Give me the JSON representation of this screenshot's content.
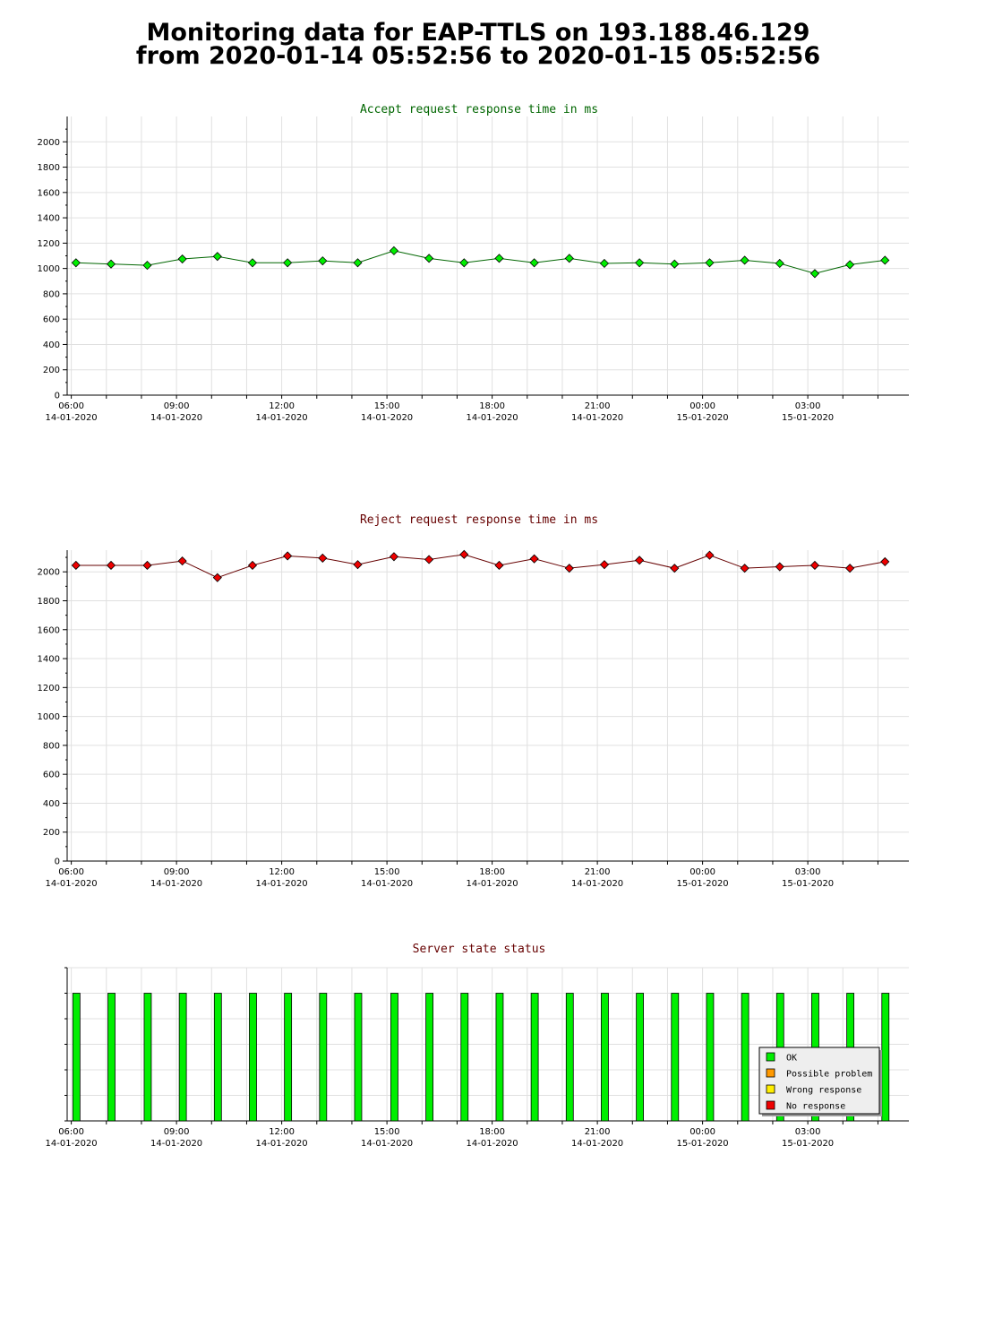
{
  "page": {
    "title_line1": "Monitoring data for EAP-TTLS on 193.188.46.129",
    "title_line2": "from 2020-01-14 05:52:56 to 2020-01-15 05:52:56"
  },
  "chart_data": [
    {
      "type": "line",
      "title": "Accept request response time in ms",
      "title_color": "#006600",
      "marker_color": "#00ee00",
      "line_color": "#006600",
      "xlabel": "",
      "ylabel": "",
      "x_ticks": [
        [
          "06:00",
          "14-01-2020"
        ],
        [
          "09:00",
          "14-01-2020"
        ],
        [
          "12:00",
          "14-01-2020"
        ],
        [
          "15:00",
          "14-01-2020"
        ],
        [
          "18:00",
          "14-01-2020"
        ],
        [
          "21:00",
          "14-01-2020"
        ],
        [
          "00:00",
          "15-01-2020"
        ],
        [
          "03:00",
          "15-01-2020"
        ]
      ],
      "xlim": [
        "2020-01-14 05:52:56",
        "2020-01-15 05:52:56"
      ],
      "ylim": [
        0,
        2200
      ],
      "y_ticks": [
        0,
        200,
        400,
        600,
        800,
        1000,
        1200,
        1400,
        1600,
        1800,
        2000
      ],
      "grid": true,
      "x": [
        "2020-01-14 06:08",
        "2020-01-14 07:08",
        "2020-01-14 08:10",
        "2020-01-14 09:10",
        "2020-01-14 10:10",
        "2020-01-14 11:10",
        "2020-01-14 12:10",
        "2020-01-14 13:10",
        "2020-01-14 14:10",
        "2020-01-14 15:12",
        "2020-01-14 16:12",
        "2020-01-14 17:12",
        "2020-01-14 18:12",
        "2020-01-14 19:12",
        "2020-01-14 20:12",
        "2020-01-14 21:12",
        "2020-01-14 22:12",
        "2020-01-14 23:12",
        "2020-01-15 00:12",
        "2020-01-15 01:12",
        "2020-01-15 02:12",
        "2020-01-15 03:12",
        "2020-01-15 04:12",
        "2020-01-15 05:12"
      ],
      "values": [
        1045,
        1035,
        1025,
        1075,
        1095,
        1045,
        1045,
        1060,
        1045,
        1140,
        1080,
        1045,
        1080,
        1045,
        1080,
        1040,
        1045,
        1035,
        1045,
        1065,
        1040,
        960,
        1030,
        1065
      ]
    },
    {
      "type": "line",
      "title": "Reject request response time in ms",
      "title_color": "#660000",
      "marker_color": "#ee0000",
      "line_color": "#660000",
      "xlabel": "",
      "ylabel": "",
      "x_ticks": [
        [
          "06:00",
          "14-01-2020"
        ],
        [
          "09:00",
          "14-01-2020"
        ],
        [
          "12:00",
          "14-01-2020"
        ],
        [
          "15:00",
          "14-01-2020"
        ],
        [
          "18:00",
          "14-01-2020"
        ],
        [
          "21:00",
          "14-01-2020"
        ],
        [
          "00:00",
          "15-01-2020"
        ],
        [
          "03:00",
          "15-01-2020"
        ]
      ],
      "xlim": [
        "2020-01-14 05:52:56",
        "2020-01-15 05:52:56"
      ],
      "ylim": [
        0,
        2150
      ],
      "y_ticks": [
        0,
        200,
        400,
        600,
        800,
        1000,
        1200,
        1400,
        1600,
        1800,
        2000
      ],
      "grid": true,
      "x": [
        "2020-01-14 06:08",
        "2020-01-14 07:08",
        "2020-01-14 08:10",
        "2020-01-14 09:10",
        "2020-01-14 10:10",
        "2020-01-14 11:10",
        "2020-01-14 12:10",
        "2020-01-14 13:10",
        "2020-01-14 14:10",
        "2020-01-14 15:12",
        "2020-01-14 16:12",
        "2020-01-14 17:12",
        "2020-01-14 18:12",
        "2020-01-14 19:12",
        "2020-01-14 20:12",
        "2020-01-14 21:12",
        "2020-01-14 22:12",
        "2020-01-14 23:12",
        "2020-01-15 00:12",
        "2020-01-15 01:12",
        "2020-01-15 02:12",
        "2020-01-15 03:12",
        "2020-01-15 04:12",
        "2020-01-15 05:12"
      ],
      "values": [
        2045,
        2045,
        2045,
        2075,
        1960,
        2045,
        2110,
        2095,
        2050,
        2105,
        2085,
        2120,
        2045,
        2090,
        2025,
        2050,
        2080,
        2025,
        2115,
        2025,
        2035,
        2045,
        2025,
        2070
      ]
    },
    {
      "type": "bar",
      "title": "Server state status",
      "title_color": "#660000",
      "xlabel": "",
      "ylabel": "",
      "x_ticks": [
        [
          "06:00",
          "14-01-2020"
        ],
        [
          "09:00",
          "14-01-2020"
        ],
        [
          "12:00",
          "14-01-2020"
        ],
        [
          "15:00",
          "14-01-2020"
        ],
        [
          "18:00",
          "14-01-2020"
        ],
        [
          "21:00",
          "14-01-2020"
        ],
        [
          "00:00",
          "15-01-2020"
        ],
        [
          "03:00",
          "15-01-2020"
        ]
      ],
      "xlim": [
        "2020-01-14 05:52:56",
        "2020-01-15 05:52:56"
      ],
      "ylim": [
        0,
        6
      ],
      "grid": true,
      "legend_placement": "bottom-right",
      "legend": [
        {
          "label": "OK",
          "color": "#00ee00"
        },
        {
          "label": "Possible problem",
          "color": "#ff9900"
        },
        {
          "label": "Wrong response",
          "color": "#ffee00"
        },
        {
          "label": "No response",
          "color": "#ee0000"
        }
      ],
      "x": [
        "2020-01-14 06:08",
        "2020-01-14 07:08",
        "2020-01-14 08:10",
        "2020-01-14 09:10",
        "2020-01-14 10:10",
        "2020-01-14 11:10",
        "2020-01-14 12:10",
        "2020-01-14 13:10",
        "2020-01-14 14:10",
        "2020-01-14 15:12",
        "2020-01-14 16:12",
        "2020-01-14 17:12",
        "2020-01-14 18:12",
        "2020-01-14 19:12",
        "2020-01-14 20:12",
        "2020-01-14 21:12",
        "2020-01-14 22:12",
        "2020-01-14 23:12",
        "2020-01-15 00:12",
        "2020-01-15 01:12",
        "2020-01-15 02:12",
        "2020-01-15 03:12",
        "2020-01-15 04:12",
        "2020-01-15 05:12"
      ],
      "values": [
        5,
        5,
        5,
        5,
        5,
        5,
        5,
        5,
        5,
        5,
        5,
        5,
        5,
        5,
        5,
        5,
        5,
        5,
        5,
        5,
        5,
        5,
        5,
        5
      ],
      "status": [
        "OK",
        "OK",
        "OK",
        "OK",
        "OK",
        "OK",
        "OK",
        "OK",
        "OK",
        "OK",
        "OK",
        "OK",
        "OK",
        "OK",
        "OK",
        "OK",
        "OK",
        "OK",
        "OK",
        "OK",
        "OK",
        "OK",
        "OK",
        "OK"
      ]
    }
  ]
}
